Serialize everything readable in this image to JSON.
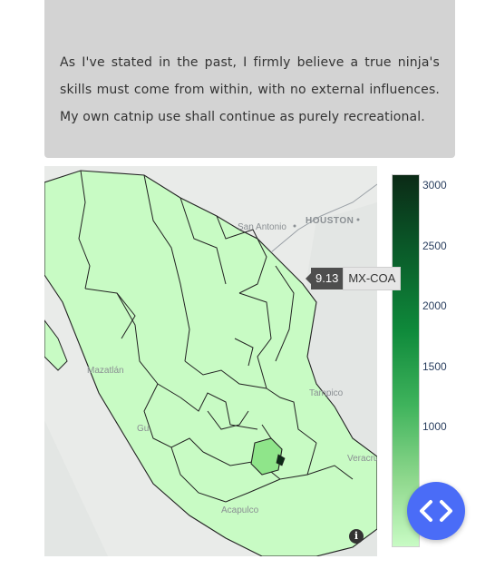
{
  "quote": {
    "text": "As I've stated in the past, I firmly believe a true ninja's skills must come from within, with no external influences. My own catnip use shall continue as purely recreational."
  },
  "map": {
    "city_labels": [
      "HOUSTON",
      "San Antonio",
      "Mazatlán",
      "Tampico",
      "Veracruz",
      "Acapulco",
      "Gu"
    ],
    "hover": {
      "value": "9.13",
      "region": "MX-COA"
    },
    "colors": {
      "fill_low": "#c8fbc4",
      "fill_high": "#0b2a16",
      "highlight": "#8fe58a",
      "land_bg": "#e9ebe9",
      "water": "#a9cde3"
    }
  },
  "colorbar": {
    "ticks": [
      "3000",
      "2500",
      "2000",
      "1500",
      "1000"
    ]
  },
  "icons": {
    "info": "info-icon",
    "code": "code-brackets-icon"
  }
}
